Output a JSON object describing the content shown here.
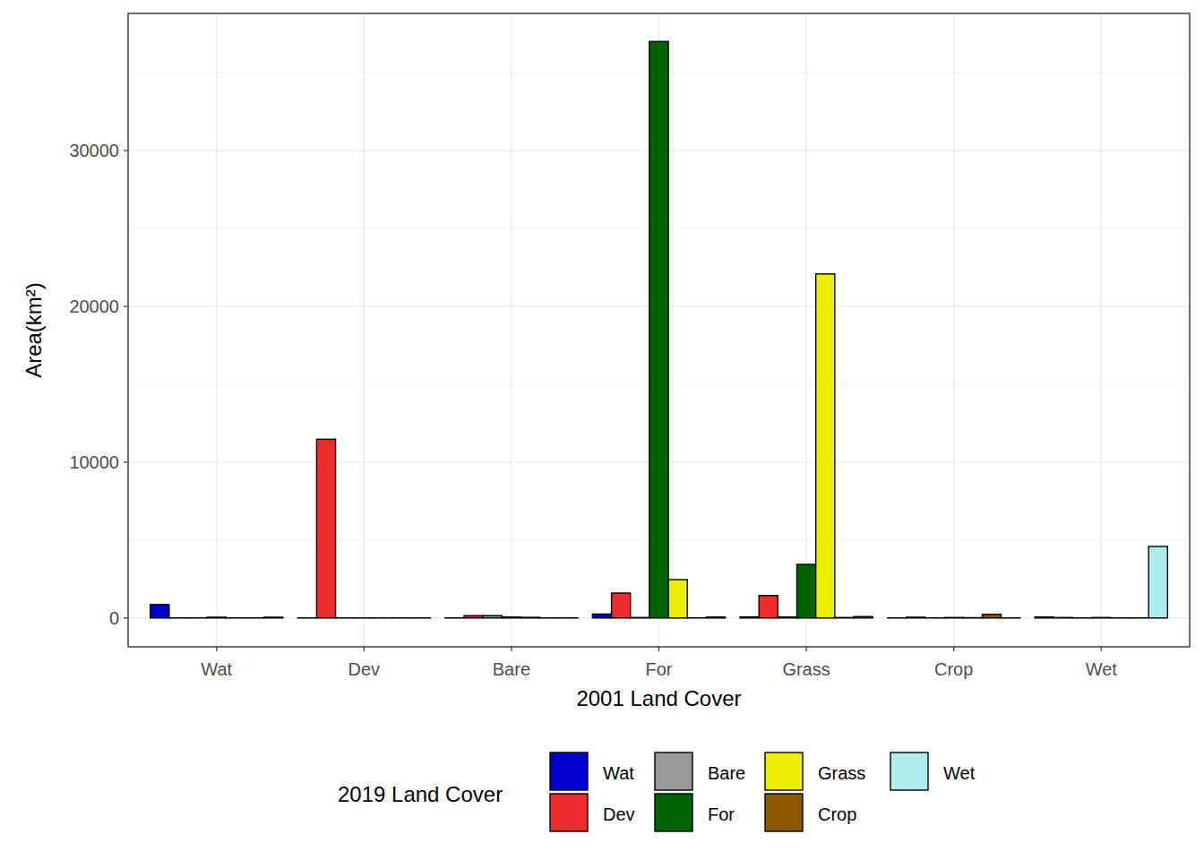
{
  "chart_data": {
    "type": "bar",
    "x_label": "2001 Land Cover",
    "y_label": "Area(km²)",
    "legend_title": "2019 Land Cover",
    "categories": [
      "Wat",
      "Dev",
      "Bare",
      "For",
      "Grass",
      "Crop",
      "Wet"
    ],
    "series": [
      {
        "name": "Wat",
        "color": "#0000CD",
        "values": [
          860,
          5,
          10,
          250,
          70,
          5,
          60
        ]
      },
      {
        "name": "Dev",
        "color": "#EE2C2C",
        "values": [
          10,
          11470,
          150,
          1600,
          1440,
          50,
          30
        ]
      },
      {
        "name": "Bare",
        "color": "#999999",
        "values": [
          10,
          5,
          150,
          30,
          60,
          5,
          5
        ]
      },
      {
        "name": "For",
        "color": "#006400",
        "values": [
          50,
          5,
          60,
          37000,
          3440,
          30,
          30
        ]
      },
      {
        "name": "Grass",
        "color": "#EEEE00",
        "values": [
          10,
          5,
          40,
          2460,
          22080,
          20,
          10
        ]
      },
      {
        "name": "Crop",
        "color": "#8B5A00",
        "values": [
          10,
          5,
          10,
          10,
          30,
          230,
          5
        ]
      },
      {
        "name": "Wet",
        "color": "#AEEEEE",
        "values": [
          50,
          5,
          10,
          60,
          90,
          5,
          4590
        ]
      }
    ],
    "ylim": [
      -1850,
      38800
    ],
    "yticks": [
      0,
      10000,
      20000,
      30000
    ],
    "grid": true,
    "legend": "bottom"
  }
}
